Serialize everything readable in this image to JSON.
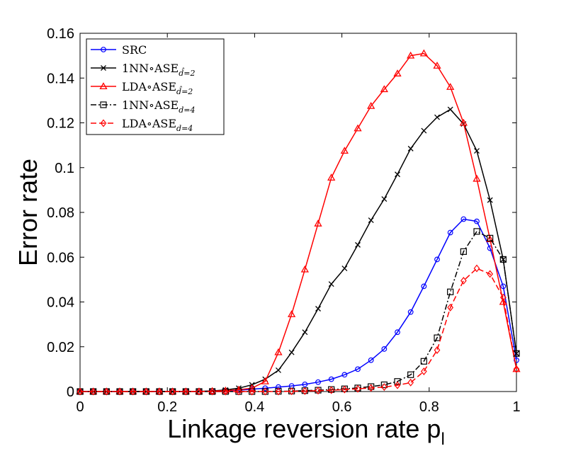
{
  "chart_data": {
    "type": "line",
    "title": "",
    "xlabel": "Linkage reversion rate p",
    "xlabel_subscript": "l",
    "ylabel": "Error rate",
    "xlim": [
      0,
      1
    ],
    "ylim": [
      0,
      0.16
    ],
    "xticks": [
      0,
      0.2,
      0.4,
      0.6,
      0.8,
      1
    ],
    "xtick_labels": [
      "0",
      "0.2",
      "0.4",
      "0.6",
      "0.8",
      "1"
    ],
    "yticks": [
      0,
      0.02,
      0.04,
      0.06,
      0.08,
      0.1,
      0.12,
      0.14,
      0.16
    ],
    "ytick_labels": [
      "0",
      "0.02",
      "0.04",
      "0.06",
      "0.08",
      "0.1",
      "0.12",
      "0.14",
      "0.16"
    ],
    "grid": false,
    "legend_position": "top-left",
    "x": [
      0,
      0.0303,
      0.0606,
      0.0909,
      0.1212,
      0.1515,
      0.1818,
      0.2121,
      0.2424,
      0.2727,
      0.303,
      0.3333,
      0.3636,
      0.3939,
      0.4242,
      0.4545,
      0.4848,
      0.5152,
      0.5455,
      0.5758,
      0.6061,
      0.6364,
      0.6667,
      0.697,
      0.7273,
      0.7576,
      0.7879,
      0.8182,
      0.8485,
      0.8788,
      0.9091,
      0.9394,
      0.9697,
      1.0
    ],
    "series": [
      {
        "name": "SRC",
        "legend_main": "SRC",
        "legend_sub": "",
        "color": "#0000ff",
        "dash": "solid",
        "marker": "circle",
        "values": [
          0,
          0,
          0,
          0,
          0,
          0,
          0,
          0,
          0,
          0,
          0.0002,
          0.0003,
          0.0006,
          0.001,
          0.0015,
          0.002,
          0.0025,
          0.0032,
          0.0042,
          0.0055,
          0.0075,
          0.01,
          0.014,
          0.019,
          0.0265,
          0.0355,
          0.047,
          0.059,
          0.071,
          0.077,
          0.076,
          0.064,
          0.047,
          0.014
        ]
      },
      {
        "name": "1NN∘ASE d̂=2",
        "legend_main": "1NN∘ASE",
        "legend_sub": "d̂=2",
        "color": "#000000",
        "dash": "solid",
        "marker": "x",
        "values": [
          0,
          0,
          0,
          0,
          0,
          0,
          0,
          0,
          0,
          0.0001,
          0.0003,
          0.0007,
          0.0015,
          0.003,
          0.0055,
          0.0095,
          0.0175,
          0.0265,
          0.037,
          0.048,
          0.055,
          0.0655,
          0.0765,
          0.086,
          0.097,
          0.1085,
          0.1165,
          0.1225,
          0.126,
          0.1195,
          0.1075,
          0.0855,
          0.059,
          0.017
        ]
      },
      {
        "name": "LDA∘ASE d̂=2",
        "legend_main": "LDA∘ASE",
        "legend_sub": "d̂=2",
        "color": "#ff0000",
        "dash": "solid",
        "marker": "triangle",
        "values": [
          0,
          0,
          0,
          0,
          0,
          0,
          0,
          0,
          0,
          0,
          0.0002,
          0.0004,
          0.0008,
          0.0015,
          0.0045,
          0.0175,
          0.0345,
          0.0545,
          0.075,
          0.0955,
          0.1075,
          0.1175,
          0.1275,
          0.135,
          0.142,
          0.15,
          0.151,
          0.1455,
          0.136,
          0.12,
          0.095,
          0.068,
          0.04,
          0.01
        ]
      },
      {
        "name": "1NN∘ASE d=4",
        "legend_main": "1NN∘ASE",
        "legend_sub": "d=4",
        "color": "#000000",
        "dash": "dashdot",
        "marker": "square",
        "values": [
          0,
          0,
          0,
          0,
          0,
          0,
          0,
          0,
          0,
          0,
          0,
          0,
          0,
          0,
          0,
          0.0001,
          0.0002,
          0.0004,
          0.0006,
          0.0009,
          0.0012,
          0.0016,
          0.0022,
          0.003,
          0.0045,
          0.0075,
          0.0135,
          0.024,
          0.0445,
          0.0625,
          0.0715,
          0.0685,
          0.059,
          0.017
        ]
      },
      {
        "name": "LDA∘ASE d=4",
        "legend_main": "LDA∘ASE",
        "legend_sub": "d=4",
        "color": "#ff0000",
        "dash": "dashed",
        "marker": "diamond",
        "values": [
          0,
          0,
          0,
          0,
          0,
          0,
          0,
          0,
          0,
          0,
          0,
          0,
          0,
          0,
          0,
          0,
          0.0001,
          0.0002,
          0.0004,
          0.0006,
          0.0009,
          0.0012,
          0.0016,
          0.002,
          0.0028,
          0.004,
          0.009,
          0.0185,
          0.0375,
          0.0495,
          0.055,
          0.0525,
          0.042,
          0.01
        ]
      }
    ]
  }
}
